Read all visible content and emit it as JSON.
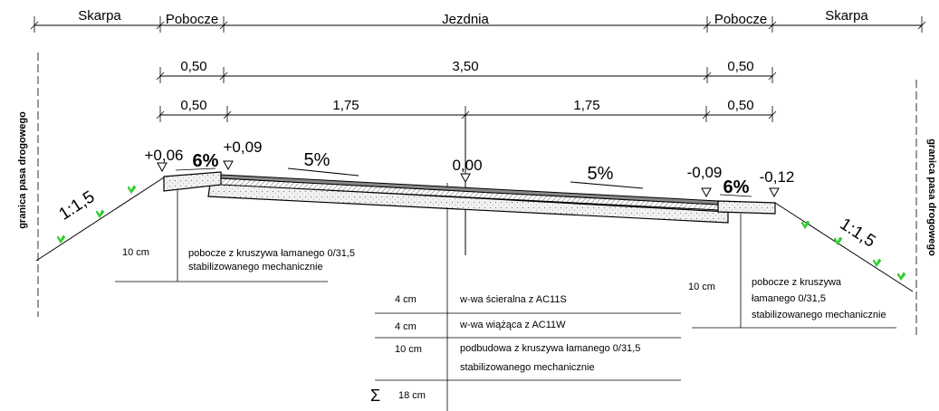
{
  "top_labels": {
    "skarpa_left": "Skarpa",
    "pobocze_left": "Pobocze",
    "jezdnia": "Jezdnia",
    "pobocze_right": "Pobocze",
    "skarpa_right": "Skarpa"
  },
  "dims_row1": {
    "left": "0,50",
    "mid": "3,50",
    "right": "0,50"
  },
  "dims_row2": {
    "left": "0,50",
    "midleft": "1,75",
    "midright": "1,75",
    "right": "0,50"
  },
  "elevations": {
    "e1": "+0,06",
    "e2": "+0,09",
    "e3": "0,00",
    "e4": "-0,09",
    "e5": "-0,12"
  },
  "slopes": {
    "s_left_shoulder": "6%",
    "s_left_lane": "5%",
    "s_right_lane": "5%",
    "s_right_shoulder": "6%"
  },
  "embankment": {
    "left": "1:1,5",
    "right": "1:1,5"
  },
  "boundary_label": "granica pasa drogowego",
  "left_note": {
    "thickness": "10 cm",
    "line1": "pobocze z kruszywa łamanego 0/31,5",
    "line2": "stabilizowanego mechanicznie"
  },
  "right_note": {
    "thickness": "10 cm",
    "line1": "pobocze z kruszywa",
    "line2": "łamanego 0/31,5",
    "line3": "stabilizowanego mechanicznie"
  },
  "layers": [
    {
      "thickness": "4 cm",
      "desc1": "w-wa ścieralna z AC11S",
      "desc2": ""
    },
    {
      "thickness": "4 cm",
      "desc1": "w-wa wiążąca z AC11W",
      "desc2": ""
    },
    {
      "thickness": "10 cm",
      "desc1": "podbudowa z kruszywa łamanego 0/31,5",
      "desc2": "stabilizowanego mechanicznie"
    }
  ],
  "total": {
    "symbol": "Σ",
    "value": "18 cm"
  }
}
